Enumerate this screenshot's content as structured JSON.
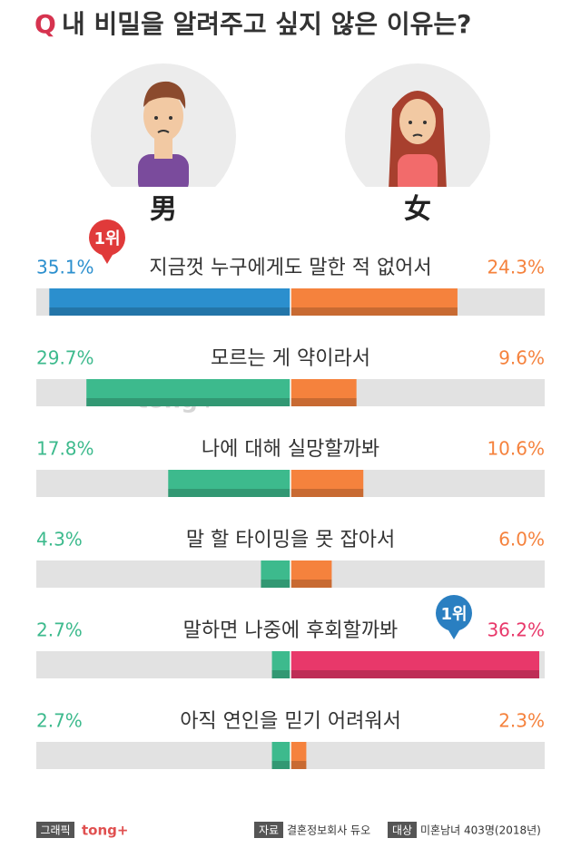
{
  "chart_data": {
    "type": "butterfly",
    "title_prefix": "Q",
    "title": "내 비밀을 알려주고 싶지 않은 이유는?",
    "categories": [
      "지금껏 누구에게도 말한 적 없어서",
      "모르는 게 약이라서",
      "나에 대해 실망할까봐",
      "말 할 타이밍을 못 잡아서",
      "말하면 나중에 후회할까봐",
      "아직 연인을 믿기 어려워서"
    ],
    "series": [
      {
        "name": "男",
        "colors": [
          "#2b8fce",
          "#3dba8d",
          "#3dba8d",
          "#3dba8d",
          "#3dba8d",
          "#3dba8d"
        ],
        "values": [
          35.1,
          29.7,
          17.8,
          4.3,
          2.7,
          2.7
        ],
        "value_labels": [
          "35.1%",
          "29.7%",
          "17.8%",
          "4.3%",
          "2.7%",
          "2.7%"
        ]
      },
      {
        "name": "女",
        "colors": [
          "#f5823d",
          "#f5823d",
          "#f5823d",
          "#f5823d",
          "#e8386a",
          "#f5823d"
        ],
        "values": [
          24.3,
          9.6,
          10.6,
          6.0,
          36.2,
          2.3
        ],
        "value_labels": [
          "24.3%",
          "9.6%",
          "10.6%",
          "6.0%",
          "36.2%",
          "2.3%"
        ]
      }
    ],
    "annotations": [
      "1위",
      "1위"
    ],
    "watermark": "tong+",
    "footer": {
      "graphic_label": "그래픽",
      "brand": "tong+",
      "source_label": "자료",
      "source": "결혼정보회사 듀오",
      "target_label": "대상",
      "target": "미혼남녀 403명(2018년)"
    }
  }
}
